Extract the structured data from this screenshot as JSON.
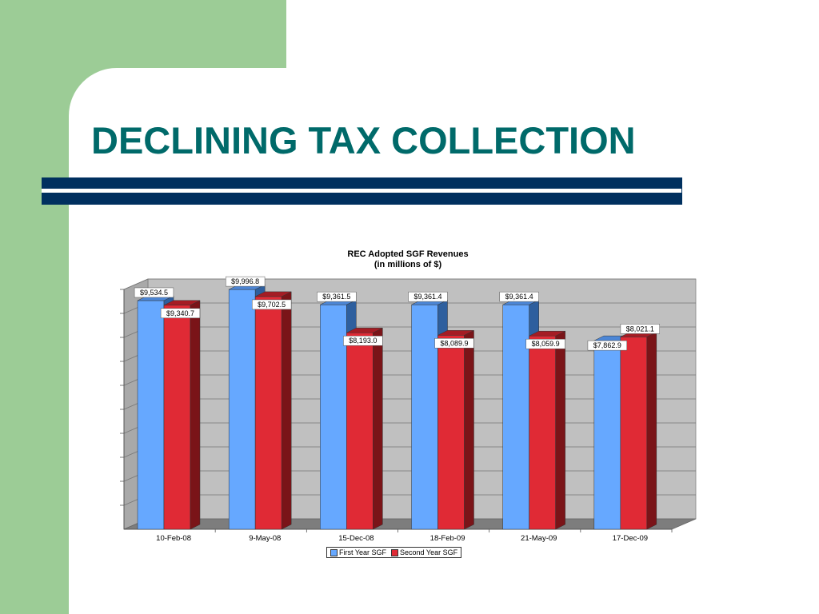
{
  "slide": {
    "title": "DECLINING TAX COLLECTION"
  },
  "colors": {
    "accent_green": "#9ccc96",
    "title_teal": "#006a6a",
    "bar_navy": "#00305f",
    "first_year": "#66a8ff",
    "second_year": "#e02a35"
  },
  "chart_data": {
    "type": "bar",
    "title": "REC Adopted SGF Revenues",
    "subtitle": "(in millions of $)",
    "categories": [
      "10-Feb-08",
      "9-May-08",
      "15-Dec-08",
      "18-Feb-09",
      "21-May-09",
      "17-Dec-09"
    ],
    "series": [
      {
        "name": "First Year SGF",
        "values": [
          9534.5,
          9996.8,
          9361.5,
          9361.4,
          9361.4,
          7862.9
        ],
        "labels": [
          "$9,534.5",
          "$9,996.8",
          "$9,361.5",
          "$9,361.4",
          "$9,361.4",
          "$7,862.9"
        ]
      },
      {
        "name": "Second Year SGF",
        "values": [
          9340.7,
          9702.5,
          8193.0,
          8089.9,
          8059.9,
          8021.1
        ],
        "labels": [
          "$9,340.7",
          "$9,702.5",
          "$8,193.0",
          "$8,089.9",
          "$8,059.9",
          "$8,021.1"
        ]
      }
    ],
    "ylim": [
      0,
      10000
    ],
    "grid": true,
    "three_d": true,
    "legend_position": "bottom"
  }
}
